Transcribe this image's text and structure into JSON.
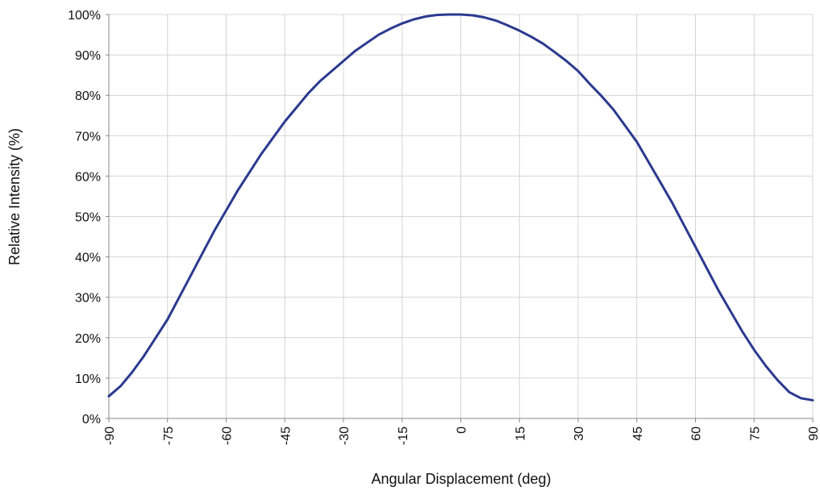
{
  "chart_data": {
    "type": "line",
    "title": "",
    "xlabel": "Angular Displacement  (deg)",
    "ylabel": "Relative Intensity  (%)",
    "xlim": [
      -90,
      90
    ],
    "ylim": [
      0,
      100
    ],
    "x_ticks": [
      -90,
      -75,
      -60,
      -45,
      -30,
      -15,
      0,
      15,
      30,
      45,
      60,
      75,
      90
    ],
    "x_tick_labels": [
      "-90",
      "-75",
      "-60",
      "-45",
      "-30",
      "-15",
      "0",
      "15",
      "30",
      "45",
      "60",
      "75",
      "90"
    ],
    "y_ticks": [
      0,
      10,
      20,
      30,
      40,
      50,
      60,
      70,
      80,
      90,
      100
    ],
    "y_tick_labels": [
      "0%",
      "10%",
      "20%",
      "30%",
      "40%",
      "50%",
      "60%",
      "70%",
      "80%",
      "90%",
      "100%"
    ],
    "grid": true,
    "legend": "none",
    "series": [
      {
        "color": "#2b3a8f",
        "x": [
          -90,
          -87,
          -84,
          -81,
          -78,
          -75,
          -72,
          -69,
          -66,
          -63,
          -60,
          -57,
          -54,
          -51,
          -48,
          -45,
          -42,
          -39,
          -36,
          -33,
          -30,
          -27,
          -24,
          -21,
          -18,
          -15,
          -12,
          -9,
          -6,
          -3,
          0,
          3,
          6,
          9,
          12,
          15,
          18,
          21,
          24,
          27,
          30,
          33,
          36,
          39,
          42,
          45,
          48,
          51,
          54,
          57,
          60,
          63,
          66,
          69,
          72,
          75,
          78,
          81,
          84,
          87,
          90
        ],
        "y": [
          5.5,
          8.0,
          11.5,
          15.5,
          20.0,
          24.5,
          30.0,
          35.5,
          41.0,
          46.5,
          51.5,
          56.5,
          61.0,
          65.5,
          69.5,
          73.5,
          77.0,
          80.5,
          83.5,
          86.0,
          88.5,
          91.0,
          93.0,
          95.0,
          96.5,
          97.8,
          98.8,
          99.5,
          99.9,
          100.0,
          100.0,
          99.8,
          99.3,
          98.5,
          97.3,
          96.0,
          94.5,
          92.8,
          90.7,
          88.5,
          86.0,
          82.8,
          79.8,
          76.5,
          72.5,
          68.5,
          63.5,
          58.5,
          53.5,
          48.0,
          42.5,
          37.0,
          31.5,
          26.5,
          21.5,
          17.0,
          13.0,
          9.5,
          6.5,
          5.0,
          4.5
        ]
      }
    ]
  }
}
